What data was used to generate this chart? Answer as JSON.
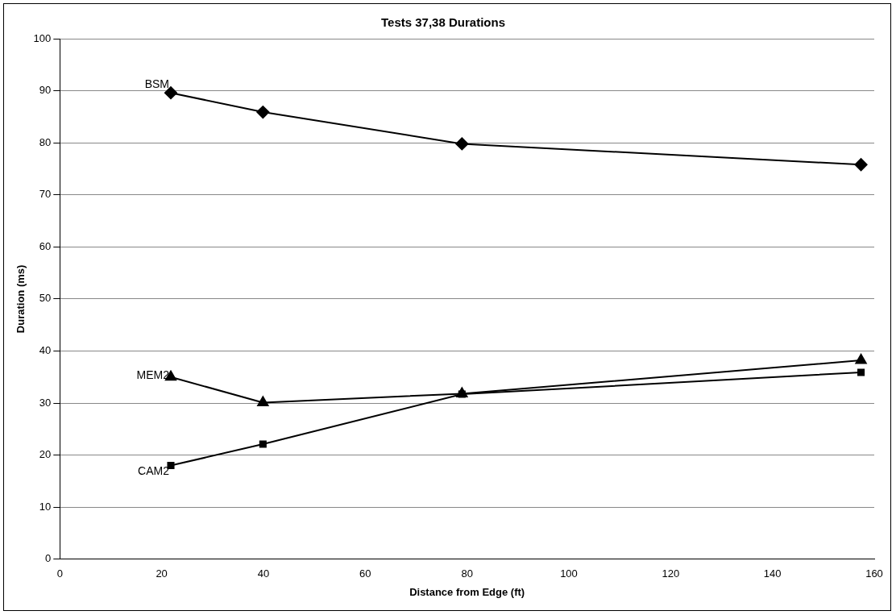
{
  "chart_data": {
    "type": "line",
    "title": "Tests 37,38 Durations",
    "xlabel": "Distance from Edge (ft)",
    "ylabel": "Duration (ms)",
    "series": [
      {
        "name": "BSM",
        "color": "#000000",
        "marker": "diamond",
        "x": [
          21.8,
          39.9,
          79,
          157.4
        ],
        "values": [
          89.6,
          85.9,
          79.8,
          75.8
        ]
      },
      {
        "name": "MEM2",
        "color": "#000000",
        "marker": "triangle",
        "x": [
          21.8,
          39.9,
          79,
          157.4
        ],
        "values": [
          35,
          30.1,
          31.8,
          38.2
        ]
      },
      {
        "name": "CAM2",
        "color": "#000000",
        "marker": "square",
        "x": [
          21.8,
          39.9,
          79,
          157.4
        ],
        "values": [
          18,
          22.1,
          31.7,
          35.9
        ]
      }
    ],
    "xlim": [
      0,
      160
    ],
    "xticks": [
      0,
      20,
      40,
      60,
      80,
      100,
      120,
      140,
      160
    ],
    "ylim": [
      0,
      100
    ],
    "yticks": [
      0,
      10,
      20,
      30,
      40,
      50,
      60,
      70,
      80,
      90,
      100
    ],
    "grid": "y",
    "legend": false,
    "line_style": "solid"
  }
}
